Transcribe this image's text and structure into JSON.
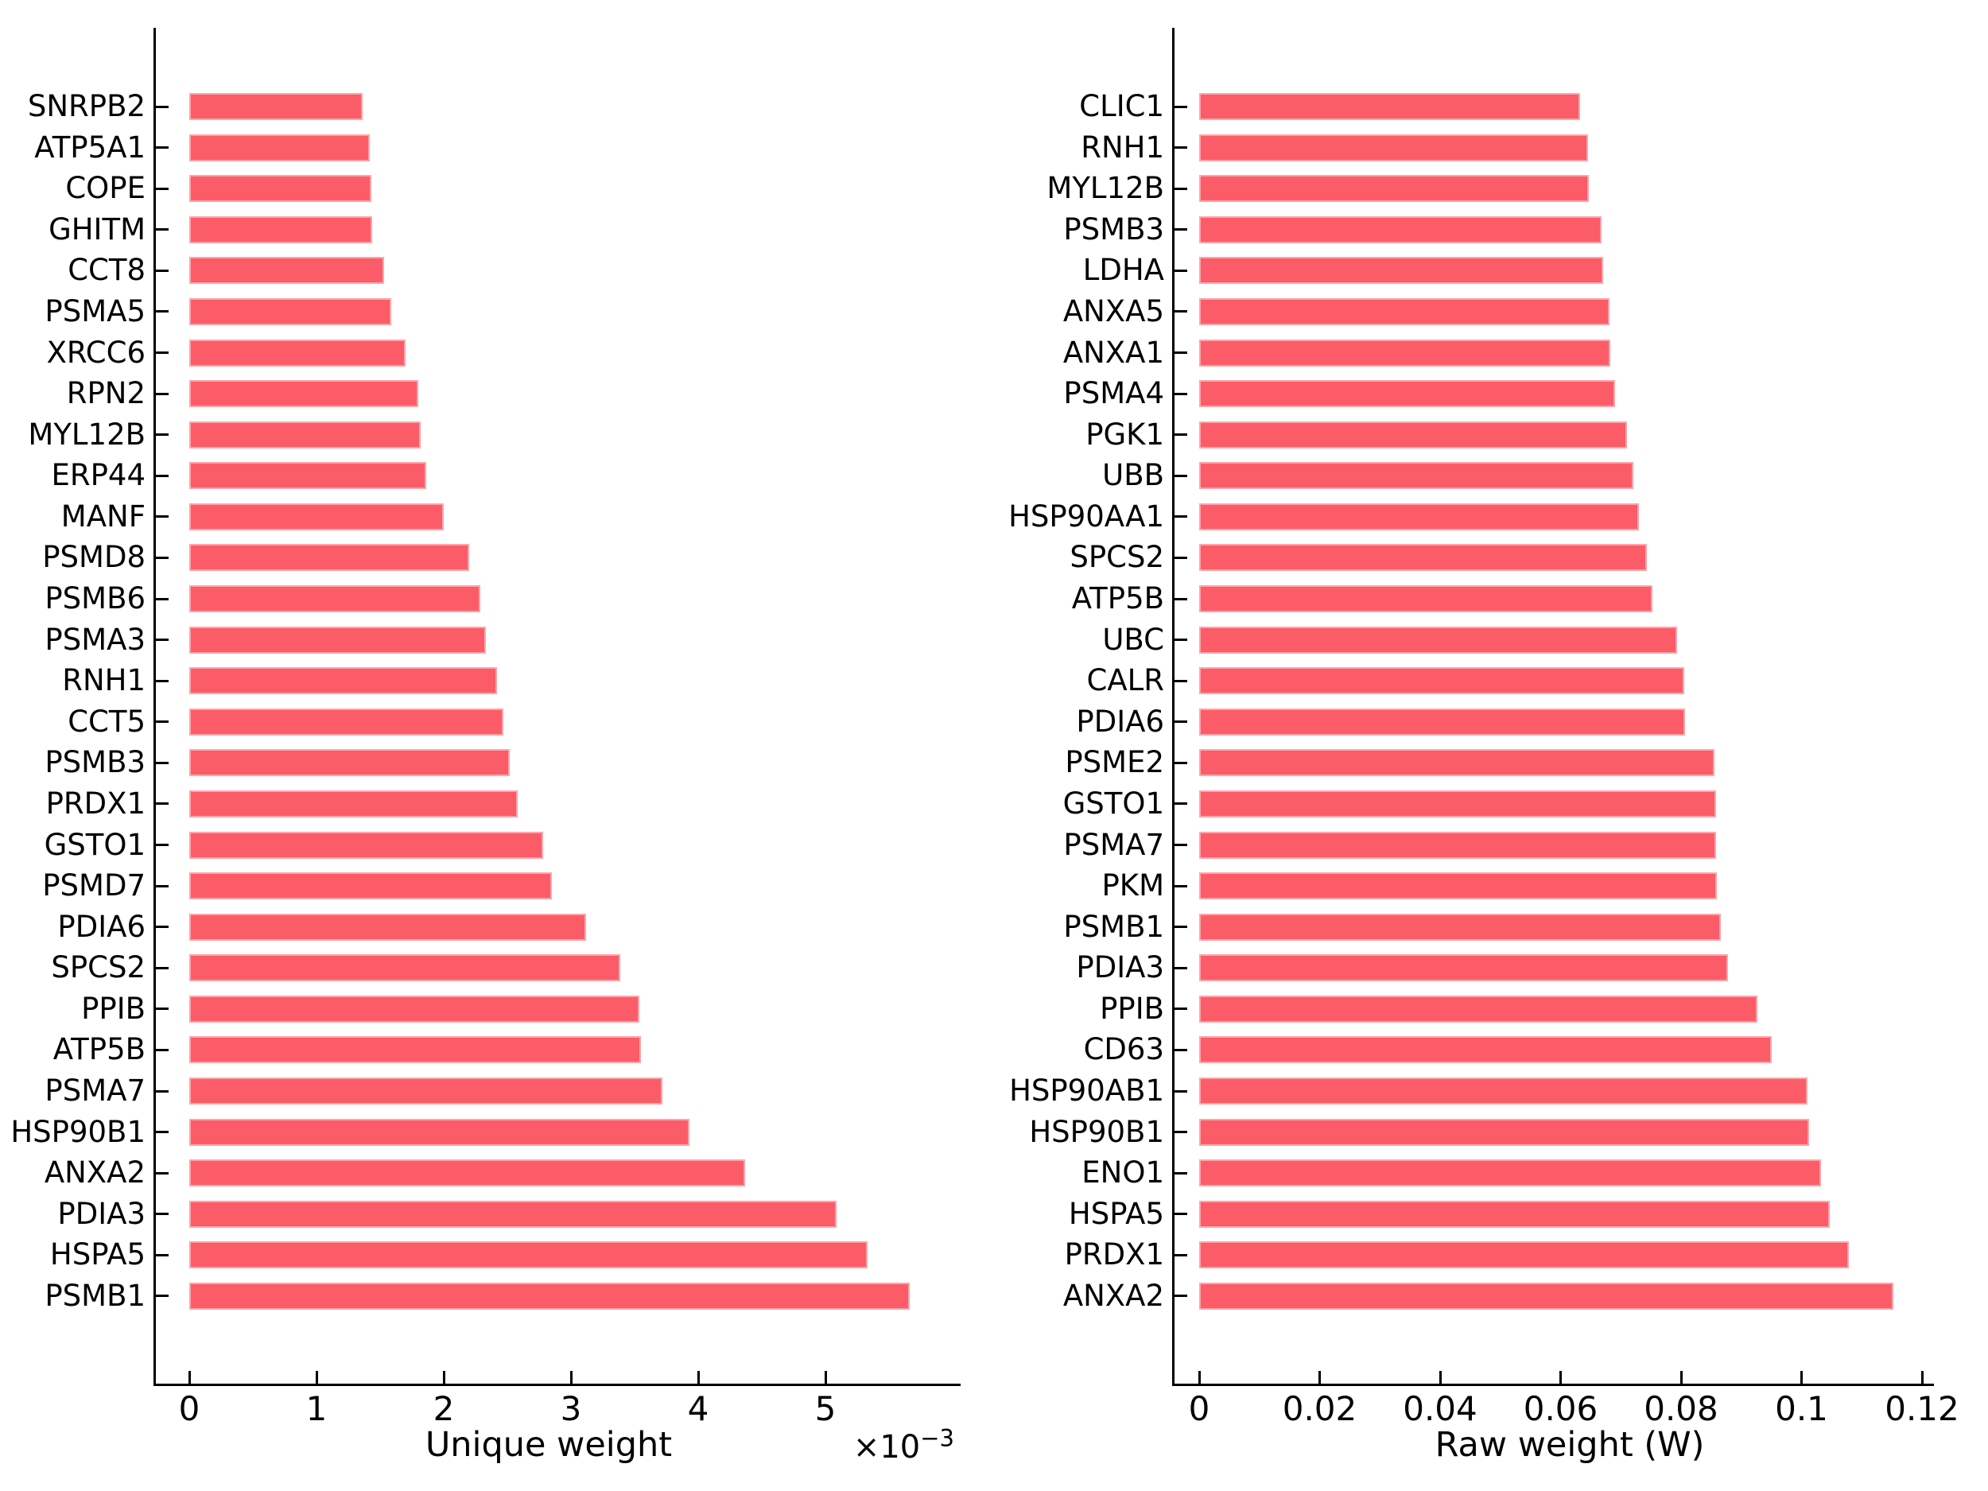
{
  "page": {
    "background": "#ffffff",
    "bar_color": "#fb5c68",
    "text_color": "#000000"
  },
  "chart_data": [
    {
      "type": "bar",
      "orientation": "horizontal",
      "title": "",
      "xlabel": "Unique weight",
      "ylabel": "",
      "exponent_base": "×10",
      "exponent_power": "−3",
      "x_offset_label": "×10⁻³",
      "value_units": "values are in multiples of 1e-3 as read against the axis ticks",
      "x_ticks": [
        0,
        1,
        2,
        3,
        4,
        5
      ],
      "x_tick_labels": [
        "0",
        "1",
        "2",
        "3",
        "4",
        "5"
      ],
      "xlim": [
        -0.28,
        5.98
      ],
      "grid": false,
      "legend": null,
      "bar_color": "#fb5c68",
      "categories": [
        "SNRPB2",
        "ATP5A1",
        "COPE",
        "GHITM",
        "CCT8",
        "PSMA5",
        "XRCC6",
        "RPN2",
        "MYL12B",
        "ERP44",
        "MANF",
        "PSMD8",
        "PSMB6",
        "PSMA3",
        "RNH1",
        "CCT5",
        "PSMB3",
        "PRDX1",
        "GSTO1",
        "PSMD7",
        "PDIA6",
        "SPCS2",
        "PPIB",
        "ATP5B",
        "PSMA7",
        "HSP90B1",
        "ANXA2",
        "PDIA3",
        "HSPA5",
        "PSMB1"
      ],
      "values": [
        1.36,
        1.42,
        1.43,
        1.44,
        1.53,
        1.59,
        1.7,
        1.8,
        1.82,
        1.86,
        2.0,
        2.2,
        2.29,
        2.33,
        2.42,
        2.47,
        2.52,
        2.58,
        2.78,
        2.85,
        3.12,
        3.39,
        3.54,
        3.55,
        3.72,
        3.93,
        4.37,
        5.09,
        5.33,
        5.66
      ]
    },
    {
      "type": "bar",
      "orientation": "horizontal",
      "title": "",
      "xlabel": "Raw weight (W)",
      "ylabel": "",
      "x_ticks": [
        0,
        0.02,
        0.04,
        0.06,
        0.08,
        0.1,
        0.12
      ],
      "x_tick_labels": [
        "0",
        "0.02",
        "0.04",
        "0.06",
        "0.08",
        "0.1",
        "0.12"
      ],
      "xlim": [
        -0.006,
        0.1214
      ],
      "grid": false,
      "legend": null,
      "bar_color": "#fb5c68",
      "categories": [
        "CLIC1",
        "RNH1",
        "MYL12B",
        "PSMB3",
        "LDHA",
        "ANXA5",
        "ANXA1",
        "PSMA4",
        "PGK1",
        "UBB",
        "HSP90AA1",
        "SPCS2",
        "ATP5B",
        "UBC",
        "CALR",
        "PDIA6",
        "PSME2",
        "GSTO1",
        "PSMA7",
        "PKM",
        "PSMB1",
        "PDIA3",
        "PPIB",
        "CD63",
        "HSP90AB1",
        "HSP90B1",
        "ENO1",
        "HSPA5",
        "PRDX1",
        "ANXA2"
      ],
      "values": [
        0.0633,
        0.0646,
        0.0647,
        0.0668,
        0.0671,
        0.0681,
        0.0683,
        0.069,
        0.071,
        0.0721,
        0.073,
        0.0743,
        0.0753,
        0.0794,
        0.0805,
        0.0807,
        0.0856,
        0.0858,
        0.0858,
        0.0859,
        0.0866,
        0.0878,
        0.0927,
        0.095,
        0.101,
        0.1013,
        0.1032,
        0.1047,
        0.1078,
        0.1153
      ]
    }
  ]
}
